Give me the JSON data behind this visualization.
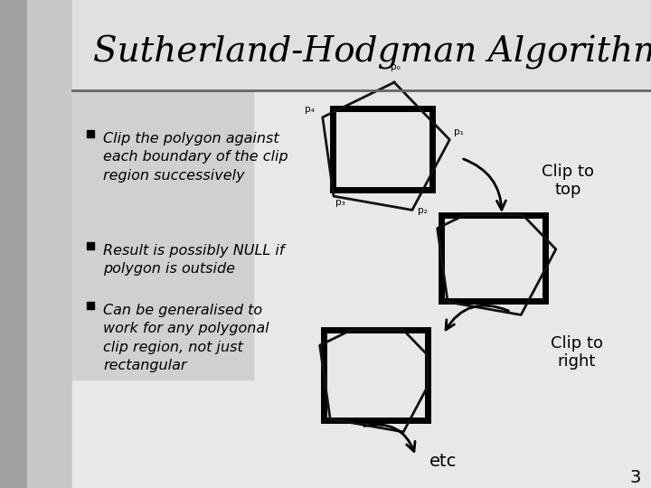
{
  "title": "Sutherland-Hodgman Algorithm",
  "background_color": "#ffffff",
  "bullet_points": [
    "Clip the polygon against\neach boundary of the clip\nregion successively",
    "Result is possibly NULL if\npolygon is outside",
    "Can be generalised to\nwork for any polygonal\nclip region, not just\nrectangular"
  ],
  "clip_to_top_label": "Clip to\ntop",
  "clip_to_right_label": "Clip to\nright",
  "etc_label": "etc",
  "page_number": "3",
  "point_labels": [
    "p₀",
    "p₁",
    "p₂",
    "p₃",
    "p₄"
  ]
}
